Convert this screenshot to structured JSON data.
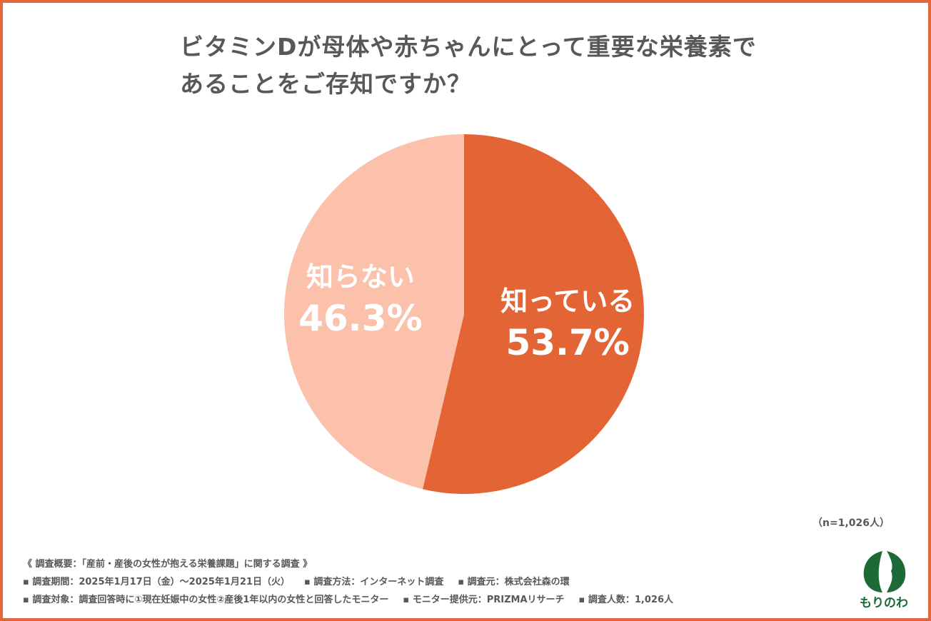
{
  "title": {
    "line1": "ビタミンDが母体や赤ちゃんにとって重要な栄養素で",
    "line2": "あることをご存知ですか？"
  },
  "chart_data": {
    "type": "pie",
    "title": "ビタミンDが母体や赤ちゃんにとって重要な栄養素であることをご存知ですか？",
    "slices": [
      {
        "label": "知っている",
        "value": 53.7,
        "display": "53.7%",
        "color": "#e36434"
      },
      {
        "label": "知らない",
        "value": 46.3,
        "display": "46.3%",
        "color": "#fbc1ab"
      }
    ],
    "start": "12 o'clock",
    "direction": "clockwise"
  },
  "sample_note": "（n=1,026人）",
  "notes": {
    "heading": "《 調査概要：「産前・産後の女性が抱える栄養課題」に関する調査 》",
    "period": "▪ 調査期間：2025年1月17日（金）〜2025年1月21日（火）",
    "method": "▪ 調査方法：インターネット調査",
    "source": "▪ 調査元：株式会社森の環",
    "target": "▪ 調査対象：調査回答時に①現在妊娠中の女性②産後1年以内の女性と回答したモニター",
    "provider": "▪ モニター提供元：PRIZMAリサーチ",
    "count": "▪ 調査人数：1,026人"
  },
  "logo": {
    "text": "もりのわ",
    "color": "#1e6a36"
  }
}
